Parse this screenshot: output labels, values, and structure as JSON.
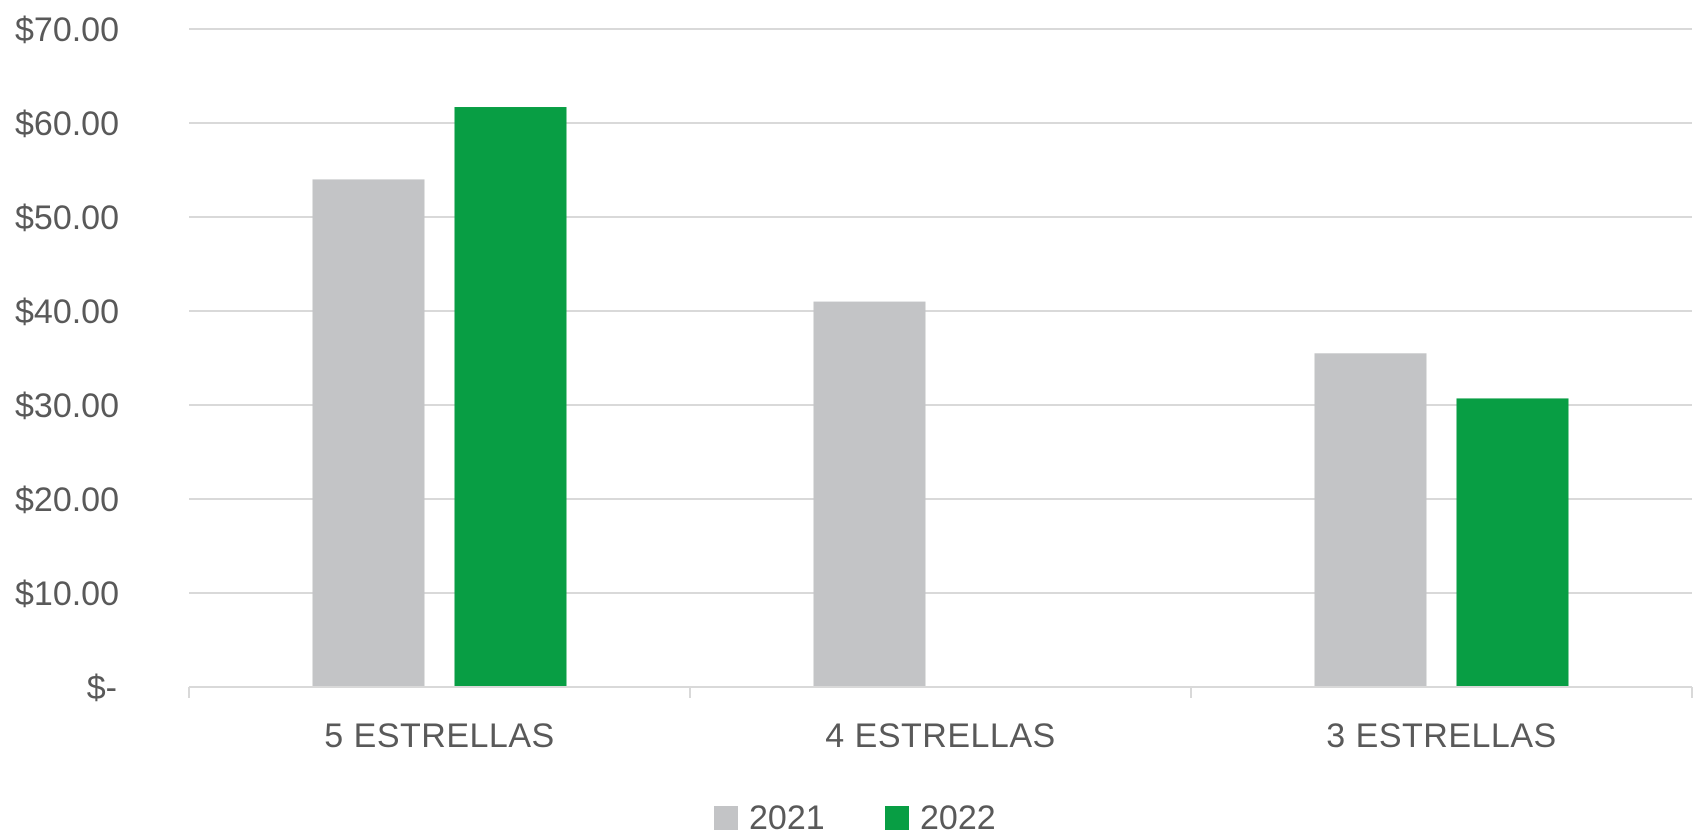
{
  "chart_data": {
    "type": "bar",
    "categories": [
      "5 ESTRELLAS",
      "4 ESTRELLAS",
      "3 ESTRELLAS"
    ],
    "series": [
      {
        "name": "2021",
        "values": [
          54.0,
          41.0,
          35.5
        ],
        "color": "#c3c4c6"
      },
      {
        "name": "2022",
        "values": [
          61.7,
          null,
          30.7
        ],
        "color": "#089e44"
      }
    ],
    "ylim": [
      0,
      70
    ],
    "yticks": [
      0,
      10,
      20,
      30,
      40,
      50,
      60,
      70
    ],
    "ytick_labels": [
      "$-",
      "$10.00",
      "$20.00",
      "$30.00",
      "$40.00",
      "$50.00",
      "$60.00",
      "$70.00"
    ],
    "title": "",
    "xlabel": "",
    "ylabel": "",
    "grid": true,
    "legend_position": "bottom-center",
    "gridline_color": "#d9d9d9",
    "axis_color": "#d9d9d9"
  }
}
